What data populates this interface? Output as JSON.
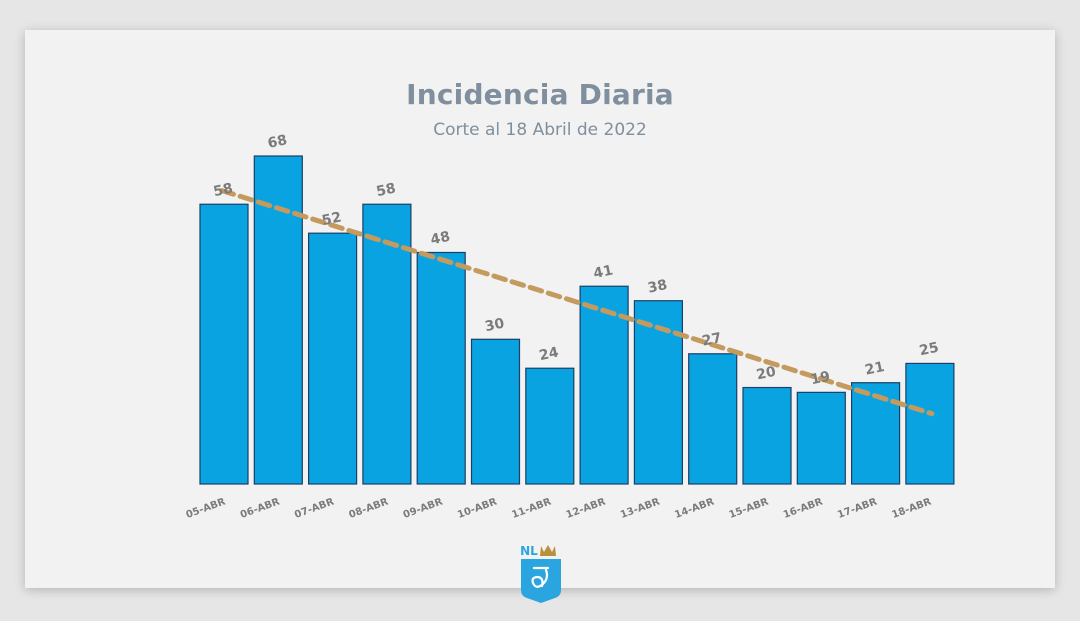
{
  "colors": {
    "bar": "#0aa3e2",
    "bar_outline": "#1b3f66",
    "trend": "#c49a5f",
    "logo": "#2aa5e0",
    "logo_crown": "#b8913c",
    "text": "#7f8f9d"
  },
  "logo": {
    "text": "NL",
    "icon": "nuevo-leon-shield-icon"
  },
  "chart_data": {
    "type": "bar",
    "title": "Incidencia Diaria",
    "subtitle": "Corte al 18 Abril de 2022",
    "categories": [
      "05-ABR",
      "06-ABR",
      "07-ABR",
      "08-ABR",
      "09-ABR",
      "10-ABR",
      "11-ABR",
      "12-ABR",
      "13-ABR",
      "14-ABR",
      "15-ABR",
      "16-ABR",
      "17-ABR",
      "18-ABR"
    ],
    "series": [
      {
        "values": [
          58,
          68,
          52,
          58,
          48,
          30,
          24,
          41,
          38,
          27,
          20,
          19,
          21,
          25
        ]
      }
    ],
    "trendline": {
      "start": 60,
      "end": 15,
      "style": "dashed"
    },
    "ylim": [
      0,
      75
    ],
    "xlabel": "",
    "ylabel": "",
    "grid": false,
    "legend": "none",
    "data_labels": true
  }
}
